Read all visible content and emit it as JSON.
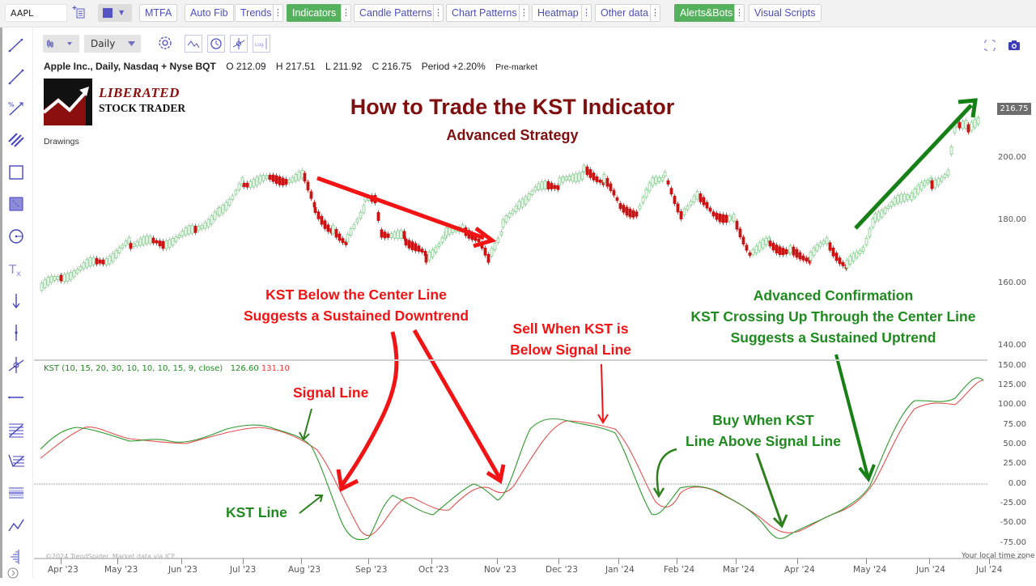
{
  "toolbar": {
    "symbol": "AAPL",
    "buttons": [
      {
        "label": "MTFA",
        "active": false
      },
      {
        "label": "Auto Fib",
        "active": false
      },
      {
        "label": "Trends",
        "active": false
      },
      {
        "label": "Indicators",
        "active": true
      },
      {
        "label": "Candle Patterns",
        "active": false
      },
      {
        "label": "Chart Patterns",
        "active": false
      },
      {
        "label": "Heatmap",
        "active": false
      },
      {
        "label": "Other data",
        "active": false
      },
      {
        "label": "Alerts&Bots",
        "active": true
      },
      {
        "label": "Visual Scripts",
        "active": false
      }
    ],
    "more_glyph": "⋮",
    "accent_color": "#56b15f",
    "link_color": "#4d4dbf"
  },
  "chart_controls": {
    "chart_type_glyph": "candles",
    "interval": "Daily",
    "icons": [
      "settings-icon",
      "trend-icon",
      "clock-icon",
      "crosshair-icon",
      "log-scale-icon"
    ],
    "log_label": "Log"
  },
  "info_bar": {
    "instrument": "Apple Inc., Daily, Nasdaq + Nyse BQT",
    "open": "O 212.09",
    "high": "H 217.51",
    "low": "L 211.92",
    "close": "C 216.75",
    "period": "Period +2.20%",
    "session": "Pre-market"
  },
  "logo": {
    "line1": "LIBERATED",
    "line2": "STOCK TRADER"
  },
  "drawings_label": "Drawings",
  "titles": {
    "main": "How to Trade the KST Indicator",
    "sub": "Advanced Strategy"
  },
  "annotations": {
    "below_center_1": "KST Below the Center Line",
    "below_center_2": "Suggests a Sustained Downtrend",
    "sell_1": "Sell When KST is",
    "sell_2": "Below Signal Line",
    "adv_1": "Advanced Confirmation",
    "adv_2": "KST Crossing Up Through the Center Line",
    "adv_3": "Suggests a Sustained Uptrend",
    "signal_line": "Signal Line",
    "kst_line": "KST Line",
    "buy_1": "Buy When KST",
    "buy_2": "Line Above Signal Line"
  },
  "price_axis": {
    "labels": [
      "200.00",
      "180.00",
      "160.00",
      "140.00"
    ],
    "last_price": "216.75"
  },
  "kst": {
    "legend": "KST (10, 15, 20, 30, 10, 10, 10, 15, 9, close)",
    "kst_value": "126.60",
    "signal_value": "131.10",
    "axis_labels": [
      "150.00",
      "125.00",
      "100.00",
      "75.00",
      "50.00",
      "25.00",
      "0.00",
      "-25.00",
      "-50.00",
      "-75.00"
    ]
  },
  "x_axis": {
    "labels": [
      "Apr '23",
      "May '23",
      "Jun '23",
      "Jul '23",
      "Aug '23",
      "Sep '23",
      "Oct '23",
      "Nov '23",
      "Dec '23",
      "Jan '24",
      "Feb '24",
      "Mar '24",
      "Apr '24",
      "May '24",
      "Jun '24",
      "Jul '24"
    ],
    "timezone": "Your local time zone"
  },
  "footer": {
    "copyright": "©2024 TrendSpider. Market data via ICE."
  },
  "colors": {
    "up_candle": "#7fcf8a",
    "down_candle": "#c81414",
    "kst_line": "#2e9a2e",
    "signal_line": "#e35050",
    "title": "#7f0f0f",
    "annotation_red": "#f21414",
    "annotation_green": "#1f8a1f"
  }
}
